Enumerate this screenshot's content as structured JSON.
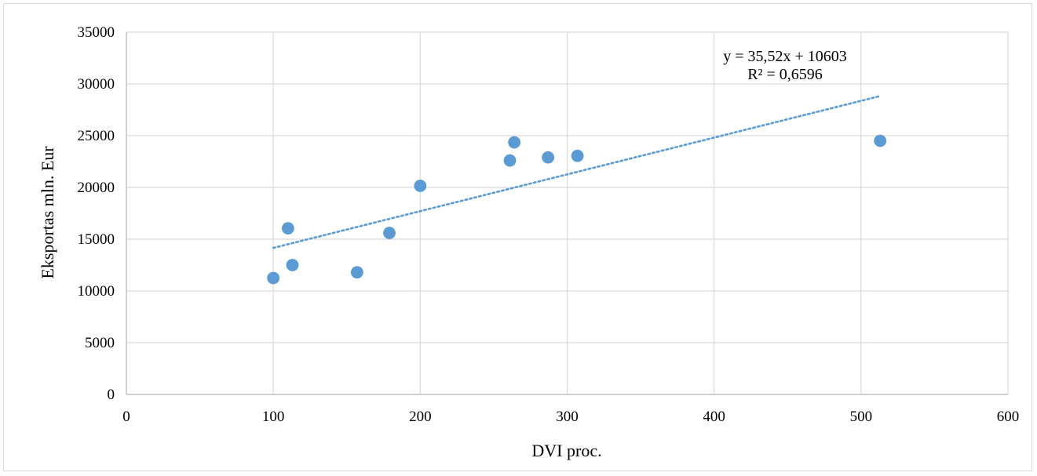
{
  "chart_data": {
    "type": "scatter",
    "xlabel": "DVI proc.",
    "ylabel": "Eksportas mln. Eur",
    "xlim": [
      0,
      600
    ],
    "ylim": [
      0,
      35000
    ],
    "x_ticks": [
      0,
      100,
      200,
      300,
      400,
      500,
      600
    ],
    "y_ticks": [
      0,
      5000,
      10000,
      15000,
      20000,
      25000,
      30000,
      35000
    ],
    "grid": true,
    "series": [
      {
        "color": "#5b9bd5",
        "points": [
          {
            "x": 100,
            "y": 11250
          },
          {
            "x": 110,
            "y": 16050
          },
          {
            "x": 113,
            "y": 12500
          },
          {
            "x": 157,
            "y": 11800
          },
          {
            "x": 179,
            "y": 15600
          },
          {
            "x": 200,
            "y": 20150
          },
          {
            "x": 261,
            "y": 22600
          },
          {
            "x": 264,
            "y": 24350
          },
          {
            "x": 287,
            "y": 22900
          },
          {
            "x": 307,
            "y": 23050
          },
          {
            "x": 513,
            "y": 24500
          }
        ]
      }
    ],
    "trendline": {
      "type": "linear",
      "slope": 35.52,
      "intercept": 10603,
      "x_range": [
        100,
        513
      ],
      "style": "dotted",
      "color": "#5b9bd5",
      "equation_label": "y = 35,52x + 10603",
      "r2_label": "R² = 0,6596"
    }
  }
}
